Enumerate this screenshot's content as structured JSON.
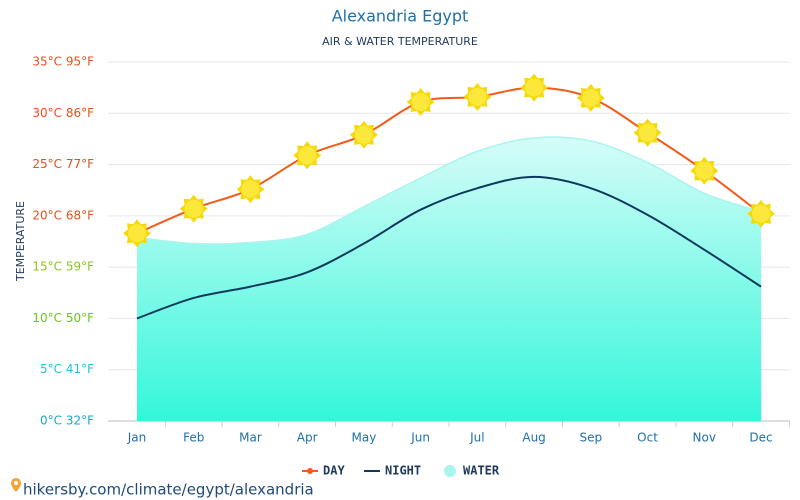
{
  "chart_data": {
    "type": "line",
    "title": "Alexandria Egypt",
    "subtitle": "AIR & WATER TEMPERATURE",
    "y_label": "TEMPERATURE",
    "categories": [
      "Jan",
      "Feb",
      "Mar",
      "Apr",
      "May",
      "Jun",
      "Jul",
      "Aug",
      "Sep",
      "Oct",
      "Nov",
      "Dec"
    ],
    "series": [
      {
        "name": "DAY",
        "color": "#f25c19",
        "values": [
          18.3,
          20.7,
          22.6,
          25.9,
          27.9,
          31.1,
          31.6,
          32.5,
          31.5,
          28.1,
          24.4,
          20.2
        ]
      },
      {
        "name": "NIGHT",
        "color": "#0c3a5c",
        "values": [
          10.0,
          12.0,
          13.1,
          14.5,
          17.3,
          20.6,
          22.7,
          23.8,
          22.7,
          20.1,
          16.7,
          13.1
        ]
      },
      {
        "name": "WATER",
        "color": "#aaf5ee",
        "values": [
          17.9,
          17.3,
          17.4,
          18.2,
          20.9,
          23.7,
          26.3,
          27.6,
          27.3,
          25.2,
          22.2,
          20.4
        ]
      }
    ],
    "ylim": [
      0,
      35
    ],
    "yticks": [
      {
        "value": 0,
        "label": "0°C 32°F",
        "color": "#1aa8c8"
      },
      {
        "value": 5,
        "label": "5°C 41°F",
        "color": "#22c4d8"
      },
      {
        "value": 10,
        "label": "10°C 50°F",
        "color": "#6bc61e"
      },
      {
        "value": 15,
        "label": "15°C 59°F",
        "color": "#8ac61e"
      },
      {
        "value": 20,
        "label": "20°C 68°F",
        "color": "#e8501e"
      },
      {
        "value": 25,
        "label": "25°C 77°F",
        "color": "#e8501e"
      },
      {
        "value": 30,
        "label": "30°C 86°F",
        "color": "#e8501e"
      },
      {
        "value": 35,
        "label": "35°C 95°F",
        "color": "#e8501e"
      }
    ],
    "grid": true,
    "footer": "hikersby.com/climate/egypt/alexandria"
  }
}
